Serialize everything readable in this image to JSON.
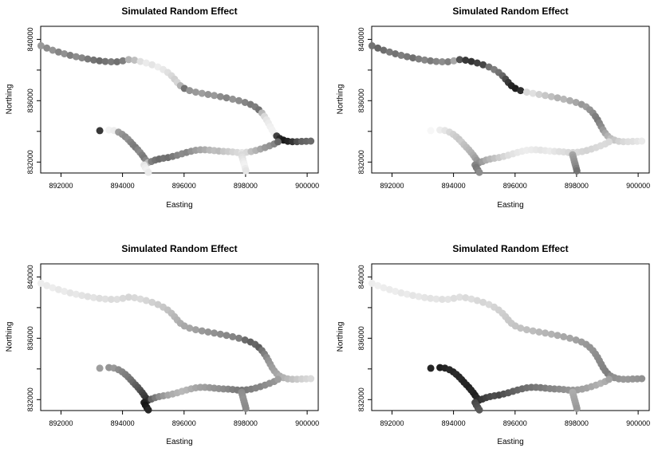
{
  "colors": {
    "background": "#ffffff",
    "axis": "#000000",
    "text": "#000000"
  },
  "chart_data": {
    "type": "scatter",
    "layout": "2x2 small multiples, shared stream-network coordinates, grayscale filled circles",
    "grid": false,
    "marker": {
      "shape": "filled-circle",
      "radius_px": 4.5
    },
    "xlim": [
      891340,
      900360
    ],
    "ylim": [
      831290,
      840850
    ],
    "x_ticks": [
      892000,
      894000,
      896000,
      898000,
      900000
    ],
    "x_tick_labels": [
      "892000",
      "894000",
      "896000",
      "898000",
      "900000"
    ],
    "y_ticks_all": [
      840000,
      838000,
      836000,
      834000,
      832000
    ],
    "y_tick_labels": [
      {
        "value": 840000,
        "label": "840000"
      },
      {
        "value": 836000,
        "label": "836000"
      },
      {
        "value": 832000,
        "label": "832000"
      }
    ],
    "gray_scale_note": "grays arrays: 0=black, 100=white; one value per network point, same order as network_points",
    "network_points": [
      [
        891350,
        839580
      ],
      [
        891540,
        839430
      ],
      [
        891730,
        839290
      ],
      [
        891920,
        839170
      ],
      [
        892110,
        839060
      ],
      [
        892300,
        838960
      ],
      [
        892490,
        838870
      ],
      [
        892680,
        838790
      ],
      [
        892870,
        838720
      ],
      [
        893060,
        838650
      ],
      [
        893250,
        838600
      ],
      [
        893440,
        838560
      ],
      [
        893630,
        838540
      ],
      [
        893820,
        838540
      ],
      [
        894010,
        838600
      ],
      [
        894200,
        838680
      ],
      [
        894390,
        838640
      ],
      [
        894580,
        838560
      ],
      [
        894770,
        838460
      ],
      [
        894960,
        838340
      ],
      [
        895150,
        838200
      ],
      [
        895320,
        838030
      ],
      [
        895470,
        837840
      ],
      [
        895590,
        837630
      ],
      [
        895690,
        837410
      ],
      [
        895780,
        837190
      ],
      [
        895880,
        836980
      ],
      [
        896010,
        836800
      ],
      [
        896180,
        836660
      ],
      [
        896380,
        836560
      ],
      [
        896580,
        836480
      ],
      [
        896780,
        836410
      ],
      [
        896980,
        836340
      ],
      [
        897180,
        836270
      ],
      [
        897380,
        836190
      ],
      [
        897580,
        836100
      ],
      [
        897780,
        836000
      ],
      [
        897980,
        835890
      ],
      [
        898160,
        835760
      ],
      [
        898310,
        835600
      ],
      [
        898430,
        835410
      ],
      [
        898530,
        835200
      ],
      [
        898610,
        834980
      ],
      [
        898680,
        834760
      ],
      [
        898740,
        834540
      ],
      [
        898800,
        834320
      ],
      [
        898860,
        834100
      ],
      [
        898930,
        833890
      ],
      [
        899010,
        833700
      ],
      [
        899110,
        833540
      ],
      [
        899230,
        833430
      ],
      [
        899370,
        833360
      ],
      [
        899520,
        833330
      ],
      [
        899670,
        833330
      ],
      [
        899820,
        833350
      ],
      [
        899970,
        833360
      ],
      [
        900120,
        833370
      ],
      [
        893260,
        834050
      ],
      [
        893560,
        834090
      ],
      [
        893720,
        834060
      ],
      [
        893870,
        833950
      ],
      [
        893990,
        833810
      ],
      [
        894090,
        833650
      ],
      [
        894180,
        833480
      ],
      [
        894260,
        833310
      ],
      [
        894340,
        833140
      ],
      [
        894420,
        832970
      ],
      [
        894500,
        832800
      ],
      [
        894570,
        832630
      ],
      [
        894640,
        832460
      ],
      [
        894700,
        832290
      ],
      [
        894760,
        832120
      ],
      [
        894830,
        831960
      ],
      [
        894940,
        832040
      ],
      [
        895060,
        832130
      ],
      [
        895190,
        832200
      ],
      [
        895330,
        832250
      ],
      [
        895480,
        832300
      ],
      [
        895630,
        832370
      ],
      [
        895780,
        832450
      ],
      [
        895930,
        832540
      ],
      [
        896080,
        832630
      ],
      [
        896230,
        832710
      ],
      [
        896380,
        832770
      ],
      [
        896530,
        832800
      ],
      [
        896680,
        832800
      ],
      [
        896830,
        832780
      ],
      [
        896980,
        832750
      ],
      [
        897130,
        832720
      ],
      [
        897280,
        832700
      ],
      [
        897430,
        832690
      ],
      [
        897580,
        832660
      ],
      [
        897730,
        832630
      ],
      [
        897880,
        832620
      ],
      [
        898030,
        832640
      ],
      [
        898180,
        832690
      ],
      [
        898330,
        832760
      ],
      [
        898480,
        832850
      ],
      [
        898630,
        832950
      ],
      [
        898780,
        833060
      ],
      [
        898930,
        833180
      ],
      [
        899050,
        833320
      ],
      [
        894700,
        831810
      ],
      [
        894740,
        831650
      ],
      [
        894790,
        831490
      ],
      [
        894840,
        831330
      ],
      [
        897870,
        832480
      ],
      [
        897890,
        832330
      ],
      [
        897910,
        832180
      ],
      [
        897930,
        832030
      ],
      [
        897950,
        831880
      ],
      [
        897970,
        831730
      ],
      [
        897990,
        831580
      ],
      [
        898010,
        831430
      ]
    ],
    "panels": [
      {
        "name": "top-left",
        "title": "Simulated Random Effect",
        "xlabel": "Easting",
        "ylabel": "Northing",
        "grays": [
          60,
          55,
          58,
          52,
          57,
          50,
          55,
          53,
          48,
          45,
          42,
          45,
          48,
          44,
          50,
          70,
          75,
          88,
          92,
          90,
          93,
          91,
          88,
          85,
          82,
          84,
          70,
          45,
          58,
          60,
          62,
          58,
          60,
          55,
          52,
          58,
          55,
          52,
          48,
          50,
          45,
          72,
          85,
          90,
          92,
          94,
          95,
          95,
          25,
          15,
          10,
          14,
          20,
          30,
          38,
          40,
          42,
          22,
          95,
          93,
          62,
          58,
          55,
          57,
          53,
          50,
          48,
          52,
          55,
          50,
          47,
          53,
          72,
          50,
          45,
          42,
          45,
          43,
          48,
          52,
          55,
          53,
          58,
          62,
          65,
          68,
          72,
          75,
          73,
          78,
          80,
          83,
          85,
          90,
          85,
          75,
          70,
          65,
          60,
          58,
          52,
          40,
          90,
          93,
          95,
          92,
          86,
          88,
          90,
          92,
          94,
          95,
          92,
          90
        ]
      },
      {
        "name": "top-right",
        "title": "Simulated Random Effect",
        "xlabel": "Easting",
        "ylabel": "Northing",
        "grays": [
          45,
          40,
          43,
          48,
          45,
          50,
          47,
          44,
          50,
          53,
          48,
          52,
          55,
          50,
          65,
          32,
          22,
          20,
          25,
          28,
          45,
          50,
          45,
          40,
          30,
          22,
          15,
          12,
          18,
          85,
          88,
          82,
          78,
          75,
          70,
          72,
          68,
          65,
          60,
          62,
          58,
          55,
          50,
          48,
          52,
          55,
          60,
          65,
          70,
          75,
          78,
          82,
          85,
          87,
          88,
          90,
          92,
          97,
          93,
          90,
          85,
          82,
          80,
          78,
          80,
          76,
          74,
          72,
          70,
          68,
          64,
          60,
          56,
          62,
          68,
          72,
          76,
          80,
          84,
          87,
          89,
          91,
          92,
          93,
          92,
          91,
          90,
          91,
          92,
          90,
          88,
          87,
          85,
          84,
          85,
          84,
          83,
          84,
          85,
          86,
          86,
          85,
          52,
          48,
          50,
          55,
          65,
          62,
          60,
          58,
          56,
          54,
          50,
          45
        ]
      },
      {
        "name": "bottom-left",
        "title": "Simulated Random Effect",
        "xlabel": "Easting",
        "ylabel": "Northing",
        "grays": [
          93,
          92,
          93,
          91,
          92,
          90,
          91,
          89,
          88,
          89,
          87,
          88,
          86,
          87,
          85,
          84,
          85,
          86,
          84,
          82,
          80,
          78,
          76,
          74,
          72,
          70,
          68,
          66,
          65,
          63,
          60,
          58,
          57,
          55,
          53,
          52,
          50,
          42,
          38,
          40,
          37,
          45,
          50,
          55,
          58,
          60,
          62,
          63,
          65,
          68,
          70,
          73,
          76,
          79,
          82,
          84,
          86,
          62,
          58,
          60,
          55,
          52,
          50,
          48,
          45,
          42,
          38,
          35,
          32,
          28,
          25,
          22,
          18,
          40,
          48,
          55,
          60,
          65,
          68,
          70,
          72,
          71,
          68,
          65,
          63,
          62,
          60,
          58,
          57,
          55,
          53,
          50,
          48,
          47,
          48,
          50,
          52,
          52,
          55,
          57,
          58,
          62,
          12,
          8,
          10,
          15,
          55,
          56,
          57,
          58,
          57,
          56,
          55,
          54
        ]
      },
      {
        "name": "bottom-right",
        "title": "Simulated Random Effect",
        "xlabel": "Easting",
        "ylabel": "Northing",
        "grays": [
          93,
          94,
          93,
          92,
          93,
          91,
          92,
          90,
          91,
          90,
          89,
          90,
          88,
          89,
          87,
          88,
          86,
          87,
          85,
          84,
          85,
          83,
          82,
          81,
          80,
          79,
          78,
          77,
          76,
          75,
          74,
          72,
          71,
          70,
          68,
          66,
          65,
          63,
          61,
          60,
          58,
          58,
          56,
          55,
          54,
          53,
          52,
          51,
          50,
          55,
          57,
          58,
          60,
          60,
          59,
          58,
          57,
          15,
          12,
          14,
          16,
          15,
          17,
          15,
          16,
          14,
          15,
          13,
          15,
          14,
          12,
          15,
          18,
          22,
          25,
          28,
          30,
          28,
          32,
          35,
          38,
          40,
          42,
          44,
          45,
          47,
          48,
          50,
          52,
          53,
          55,
          57,
          58,
          60,
          62,
          63,
          64,
          66,
          68,
          70,
          68,
          64,
          28,
          30,
          32,
          35,
          68,
          67,
          66,
          65,
          64,
          63,
          62,
          60
        ]
      }
    ]
  }
}
